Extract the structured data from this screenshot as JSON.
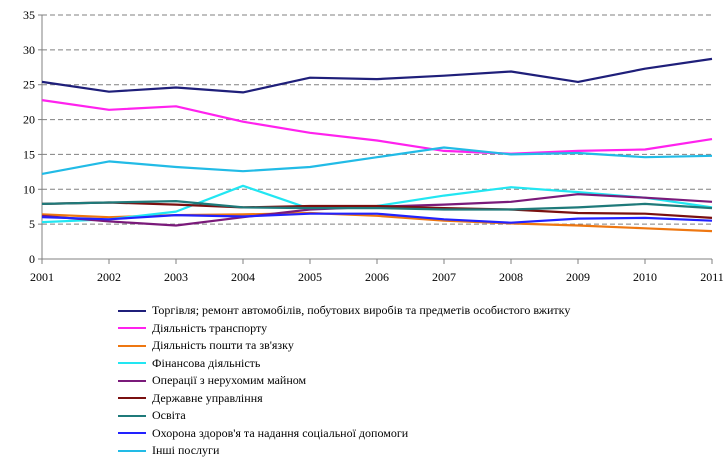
{
  "chart_data": {
    "type": "line",
    "x": [
      2001,
      2002,
      2003,
      2004,
      2005,
      2006,
      2007,
      2008,
      2009,
      2010,
      2011
    ],
    "xticks": [
      "2001",
      "2002",
      "2003",
      "2004",
      "2005",
      "2006",
      "2007",
      "2008",
      "2009",
      "2010",
      "2011"
    ],
    "ylim": [
      0,
      35
    ],
    "yticks": [
      "0",
      "5",
      "10",
      "15",
      "20",
      "25",
      "30",
      "35"
    ],
    "grid": "horizontal-dashed",
    "legend_position": "bottom",
    "series": [
      {
        "name": "Торгівля; ремонт автомобілів, побутових виробів та предметів особистого вжитку",
        "color": "#1f1f7a",
        "values": [
          25.4,
          24.0,
          24.6,
          23.9,
          26.0,
          25.8,
          26.3,
          26.9,
          25.4,
          27.3,
          28.7
        ]
      },
      {
        "name": "Діяльність транспорту",
        "color": "#ff22ee",
        "values": [
          22.8,
          21.4,
          21.9,
          19.7,
          18.1,
          17.0,
          15.5,
          15.1,
          15.5,
          15.7,
          17.2
        ]
      },
      {
        "name": "Діяльність пошти та зв'язку",
        "color": "#ee7711",
        "values": [
          6.4,
          6.0,
          6.3,
          6.4,
          6.6,
          6.2,
          5.5,
          5.1,
          4.8,
          4.4,
          4.0
        ]
      },
      {
        "name": "Фінансова діяльність",
        "color": "#22e6f2",
        "values": [
          5.3,
          5.7,
          6.8,
          10.5,
          7.2,
          7.6,
          9.1,
          10.3,
          9.6,
          8.8,
          7.4
        ]
      },
      {
        "name": "Операції з нерухомим майном",
        "color": "#7a1a7a",
        "values": [
          6.2,
          5.4,
          4.8,
          6.0,
          7.1,
          7.5,
          7.8,
          8.2,
          9.3,
          8.8,
          8.2
        ]
      },
      {
        "name": "Державне управління",
        "color": "#7a1010",
        "values": [
          7.9,
          8.1,
          7.8,
          7.4,
          7.6,
          7.6,
          7.3,
          7.1,
          6.6,
          6.5,
          5.9
        ]
      },
      {
        "name": "Освіта",
        "color": "#1f7a7a",
        "values": [
          7.9,
          8.1,
          8.3,
          7.4,
          7.3,
          7.3,
          7.1,
          7.1,
          7.4,
          7.9,
          7.3
        ]
      },
      {
        "name": "Охорона здоров'я та надання соціальної допомоги",
        "color": "#2222ff",
        "values": [
          6.0,
          5.7,
          6.3,
          6.1,
          6.5,
          6.5,
          5.7,
          5.2,
          5.8,
          5.9,
          5.5
        ]
      },
      {
        "name": "Інші послуги",
        "color": "#22bbe6",
        "values": [
          12.2,
          14.0,
          13.2,
          12.6,
          13.2,
          14.6,
          16.0,
          15.0,
          15.2,
          14.6,
          14.8
        ]
      }
    ]
  }
}
